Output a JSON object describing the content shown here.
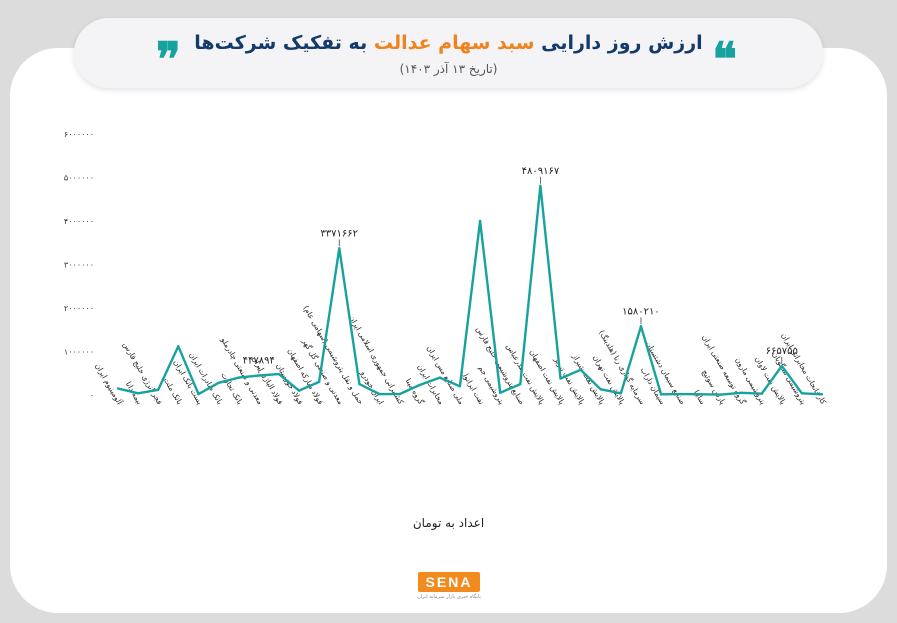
{
  "header": {
    "title_part1": "ارزش روز دارایی ",
    "title_highlight": "سبد سهام عدالت",
    "title_part2": " به تفکیک شرکت‌ها",
    "subtitle": "(تاریخ ۱۳ آذر ۱۴۰۳)",
    "open_quote": "❞",
    "close_quote": "❝"
  },
  "footer": {
    "axis_caption": "اعداد به تومان",
    "logo_text": "SENA",
    "logo_tagline": "پایگاه خبری بازار سرمایه ایران"
  },
  "colors": {
    "line": "#17a2a0",
    "title": "#143a6b",
    "accent": "#f0831f",
    "logo": "#f28a1e"
  },
  "chart_data": {
    "type": "line",
    "grid": false,
    "ylim": [
      0,
      6000000
    ],
    "yticks": [
      "۰",
      "۱۰۰۰۰۰۰",
      "۲۰۰۰۰۰۰",
      "۳۰۰۰۰۰۰",
      "۴۰۰۰۰۰۰",
      "۵۰۰۰۰۰۰",
      "۶۰۰۰۰۰۰"
    ],
    "categories": [
      "آلومینیوم ایران",
      "بیمه دانا",
      "فجر انرژی خلیج فارس",
      "بانک ملت",
      "پست بانک ایران",
      "بانک صادرات ایران",
      "بانک تجارت",
      "معدنی و صنعتی چادرملو",
      "فولاد الیاژی ایران",
      "فولاد خوزستان",
      "فولاد مبارکه اصفهان",
      "معدنی و صنعتی گل گهر",
      "حمل و نقل پتروشیمی (سهامی عام)",
      "ایران خودرو",
      "کشتیرانی جمهوری اسلامی ایران",
      "گروه مینا",
      "مخابرات ایران",
      "ملی صنایع مس ایران",
      "نفت ایرانول",
      "پتروشیمی جم",
      "صنایع پتروشیمی خلیج فارس",
      "پالایش نفت بندرعباس",
      "پالایش نفت اصفهان",
      "پالایش نفت تبریز",
      "پالایش نفت شیراز",
      "پالایش نفت تهران",
      "سرمایه گذاری رنا (هلدینگ)",
      "سیمان داراب",
      "صنایع سیمان دشتستان",
      "سایپا",
      "پارس سوئیچ",
      "گروه توسعه صنعتی ایران",
      "پتروشیمی مارون",
      "پالایش نفت لاوان",
      "پتروشیمی تندگویان",
      "کارخانجات مخابراتی ایران"
    ],
    "values": [
      150000,
      40000,
      120000,
      1120000,
      20000,
      280000,
      400000,
      447894,
      480000,
      100000,
      300000,
      3371662,
      250000,
      20000,
      20000,
      230000,
      400000,
      200000,
      4000000,
      50000,
      250000,
      4809167,
      380000,
      580000,
      130000,
      40000,
      1580210,
      15000,
      20000,
      15000,
      10000,
      50000,
      30000,
      665755,
      40000,
      15000
    ],
    "data_labels": [
      {
        "index": 7,
        "text": "۴۴۷۸۹۴"
      },
      {
        "index": 11,
        "text": "۳۳۷۱۶۶۲"
      },
      {
        "index": 21,
        "text": "۴۸۰۹۱۶۷"
      },
      {
        "index": 26,
        "text": "۱۵۸۰۲۱۰"
      },
      {
        "index": 33,
        "text": "۶۶۵۷۵۵"
      }
    ]
  }
}
